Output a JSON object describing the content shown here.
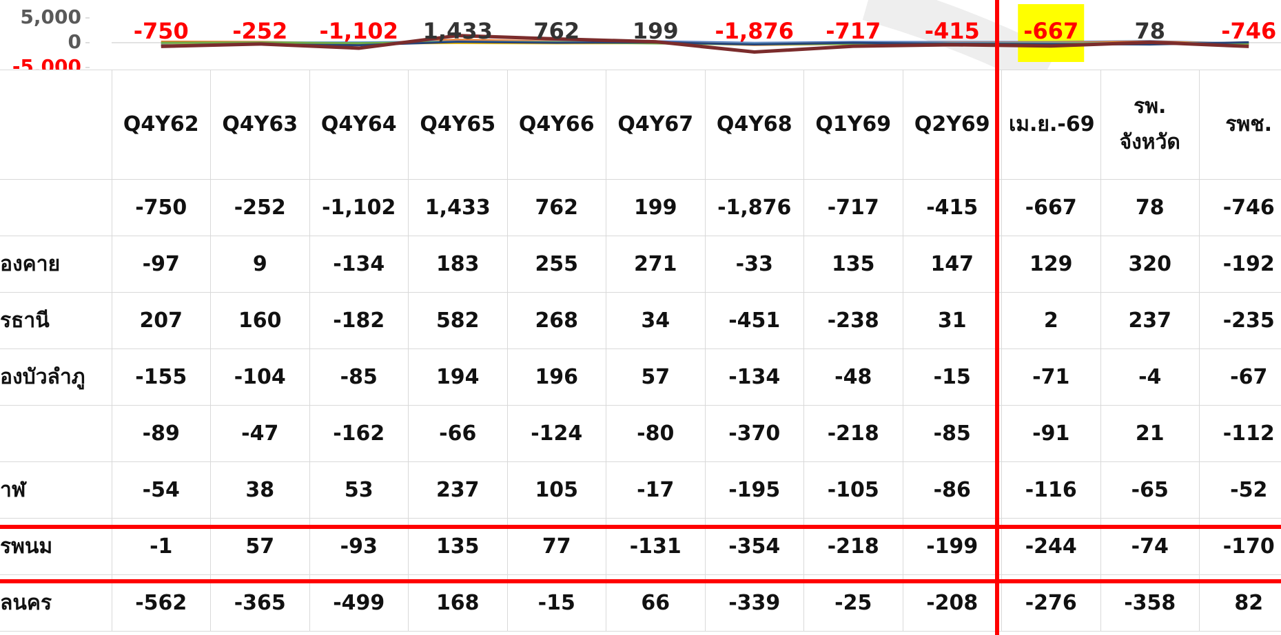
{
  "chart_data": {
    "type": "line",
    "categories": [
      "Q4Y62",
      "Q4Y63",
      "Q4Y64",
      "Q4Y65",
      "Q4Y66",
      "Q4Y67",
      "Q4Y68",
      "Q1Y69",
      "Q2Y69",
      "เม.ย.-69",
      "รพ. จังหวัด",
      "รพช."
    ],
    "ylim": [
      -5000,
      5000
    ],
    "yticks": [
      {
        "value": 5000,
        "label": "5,000"
      },
      0,
      {
        "value": -5000,
        "label": "-5,000"
      }
    ],
    "highlight": {
      "index": 9,
      "color": "#ffff00"
    },
    "series": [
      {
        "name": null,
        "color": "#7b2c2c",
        "values": [
          -750,
          -252,
          -1102,
          1433,
          762,
          199,
          -1876,
          -717,
          -415,
          -667,
          78,
          -746
        ],
        "value_labels": [
          "-750",
          "-252",
          "-1,102",
          "1,433",
          "762",
          "199",
          "-1,876",
          "-717",
          "-415",
          "-667",
          "78",
          "-746"
        ]
      },
      {
        "name": "องคาย",
        "color": "#4472c4",
        "values": [
          -97,
          9,
          -134,
          183,
          255,
          271,
          -33,
          135,
          147,
          129,
          320,
          -192
        ]
      },
      {
        "name": "รธานี",
        "color": "#ed7d31",
        "values": [
          207,
          160,
          -182,
          582,
          268,
          34,
          -451,
          -238,
          31,
          2,
          237,
          -235
        ]
      },
      {
        "name": "องบัวลำภู",
        "color": "#a5a5a5",
        "values": [
          -155,
          -104,
          -85,
          194,
          196,
          57,
          -134,
          -48,
          -15,
          -71,
          -4,
          -67
        ]
      },
      {
        "name": null,
        "color": "#ffc000",
        "values": [
          -89,
          -47,
          -162,
          -66,
          -124,
          -80,
          -370,
          -218,
          -85,
          -91,
          21,
          -112
        ]
      },
      {
        "name": "าฬ",
        "color": "#5b9bd5",
        "values": [
          -54,
          38,
          53,
          237,
          105,
          -17,
          -195,
          -105,
          -86,
          -116,
          -65,
          -52
        ]
      },
      {
        "name": "รพนม",
        "color": "#70ad47",
        "values": [
          -1,
          57,
          -93,
          135,
          77,
          -131,
          -354,
          -218,
          -199,
          -244,
          -74,
          -170
        ]
      },
      {
        "name": "ลนคร",
        "color": "#264478",
        "values": [
          -562,
          -365,
          -499,
          168,
          -15,
          66,
          -339,
          -25,
          -208,
          -276,
          -358,
          82
        ]
      }
    ]
  }
}
